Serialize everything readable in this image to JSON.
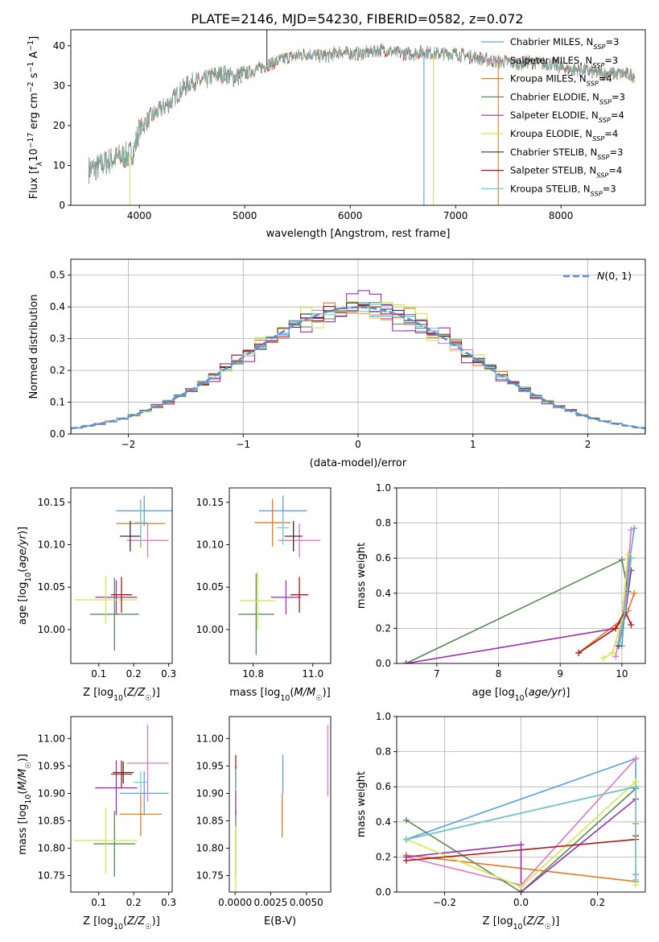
{
  "title": "PLATE=2146, MJD=54230, FIBERID=0582, z=0.072",
  "model_names": [
    "Chabrier MILES, N_SSP=3",
    "Salpeter MILES, N_SSP=3",
    "Kroupa MILES, N_SSP=4",
    "Chabrier ELODIE, N_SSP=3",
    "Salpeter ELODIE, N_SSP=4",
    "Kroupa ELODIE, N_SSP=4",
    "Chabrier STELIB, N_SSP=3",
    "Salpeter STELIB, N_SSP=4",
    "Kroupa STELIB, N_SSP=3"
  ],
  "colors": [
    "#5a9ee6",
    "#e377c2",
    "#e07b20",
    "#5a8a5a",
    "#9b2fae",
    "#d4e84c",
    "#333333",
    "#b01818",
    "#6fd0d0"
  ],
  "chart_data": [
    {
      "id": "spectrum",
      "type": "line",
      "title": "PLATE=2146, MJD=54230, FIBERID=0582, z=0.072",
      "xlabel": "wavelength [Angstrom, rest frame]",
      "ylabel": "Flux [f_λ 10^-17 erg cm^-2 s^-1 A^-1]",
      "xlim": [
        3350,
        8800
      ],
      "ylim": [
        0,
        44
      ],
      "xticks": [
        4000,
        5000,
        6000,
        7000,
        8000
      ],
      "yticks": [
        0,
        10,
        20,
        30,
        40
      ],
      "legend_position": "right",
      "grid": false,
      "continuum": {
        "x": [
          3520,
          3600,
          3700,
          3800,
          3900,
          3950,
          4000,
          4100,
          4200,
          4300,
          4400,
          4500,
          4600,
          4700,
          4800,
          4900,
          5000,
          5100,
          5200,
          5300,
          5400,
          5500,
          5600,
          5700,
          5800,
          5900,
          6000,
          6100,
          6200,
          6300,
          6400,
          6500,
          6600,
          6700,
          6800,
          6900,
          7000,
          7100,
          7200,
          7300,
          7400,
          7500,
          7600,
          7700,
          7800,
          7900,
          8000,
          8100,
          8200,
          8300,
          8400,
          8500,
          8600,
          8700
        ],
        "y": [
          9,
          9.5,
          11,
          12,
          12.5,
          14,
          19,
          22,
          24,
          26,
          29,
          31,
          31,
          32.5,
          33,
          32,
          33,
          34,
          35,
          36,
          37,
          37.5,
          38,
          37.5,
          37.5,
          38.5,
          38,
          38,
          38.5,
          39,
          38.5,
          38,
          38,
          38.5,
          38,
          38,
          38,
          37.5,
          37,
          36.5,
          36,
          36,
          35.5,
          36,
          35.5,
          35.5,
          34.5,
          34,
          34,
          33.5,
          33,
          33,
          33,
          32.5
        ]
      },
      "spikes": [
        {
          "series": 5,
          "x": 3910,
          "y": 0
        },
        {
          "series": 5,
          "x": 6790,
          "y": 0
        },
        {
          "series": 2,
          "x": 7405,
          "y": 0
        },
        {
          "series": 6,
          "x": 5210,
          "y": 44
        },
        {
          "series": 0,
          "x": 6700,
          "y": 0
        }
      ]
    },
    {
      "id": "residual-histogram",
      "type": "bar",
      "xlabel": "(data-model)/error",
      "ylabel": "Normed distribution",
      "xlim": [
        -2.5,
        2.5
      ],
      "ylim": [
        0,
        0.55
      ],
      "xticks": [
        -2,
        -1,
        0,
        1,
        2
      ],
      "yticks": [
        0.0,
        0.1,
        0.2,
        0.3,
        0.4,
        0.5
      ],
      "bin_width": 0.1,
      "bin_start": -2.5,
      "grid": true,
      "reference_curve": {
        "name": "N(0,1)",
        "type": "gaussian",
        "mu": 0,
        "sigma": 1
      },
      "legend_position": "top-right"
    },
    {
      "id": "age-vs-Z",
      "type": "scatter",
      "xlabel": "Z [log10(Z/Z☉)]",
      "ylabel": "age  [log10(age/yr)]",
      "xlim": [
        0.02,
        0.31
      ],
      "ylim": [
        9.96,
        10.167
      ],
      "xticks": [
        0.1,
        0.2,
        0.3
      ],
      "yticks": [
        10.0,
        10.05,
        10.1,
        10.15
      ],
      "points": [
        {
          "x": 0.23,
          "y": 10.14,
          "xerr": 0.08,
          "yerr": 0.018
        },
        {
          "x": 0.24,
          "y": 10.105,
          "xerr": 0.06,
          "yerr": 0.02
        },
        {
          "x": 0.22,
          "y": 10.125,
          "xerr": 0.07,
          "yerr": 0.028
        },
        {
          "x": 0.145,
          "y": 10.018,
          "xerr": 0.07,
          "yerr": 0.043
        },
        {
          "x": 0.15,
          "y": 10.038,
          "xerr": 0.06,
          "yerr": 0.02
        },
        {
          "x": 0.12,
          "y": 10.035,
          "xerr": 0.09,
          "yerr": 0.028
        },
        {
          "x": 0.19,
          "y": 10.11,
          "xerr": 0.03,
          "yerr": 0.018
        },
        {
          "x": 0.165,
          "y": 10.041,
          "xerr": 0.03,
          "yerr": 0.021
        },
        {
          "x": 0.22,
          "y": 10.126,
          "xerr": 0.02,
          "yerr": 0.025
        }
      ]
    },
    {
      "id": "age-vs-mass",
      "type": "scatter",
      "xlabel": "mass [log10(M/M☉)]",
      "ylabel": "",
      "xlim": [
        10.72,
        11.06
      ],
      "ylim": [
        9.96,
        10.167
      ],
      "xticks": [
        10.8,
        11.0
      ],
      "yticks": [
        10.0,
        10.05,
        10.1,
        10.15
      ],
      "points": [
        {
          "x": 10.9,
          "y": 10.14,
          "xerr": 0.08,
          "yerr": 0.018
        },
        {
          "x": 10.955,
          "y": 10.105,
          "xerr": 0.07,
          "yerr": 0.02
        },
        {
          "x": 10.865,
          "y": 10.126,
          "xerr": 0.06,
          "yerr": 0.028
        },
        {
          "x": 10.81,
          "y": 10.018,
          "xerr": 0.06,
          "yerr": 0.048
        },
        {
          "x": 10.91,
          "y": 10.038,
          "xerr": 0.05,
          "yerr": 0.02
        },
        {
          "x": 10.815,
          "y": 10.034,
          "xerr": 0.06,
          "yerr": 0.034
        },
        {
          "x": 10.935,
          "y": 10.11,
          "xerr": 0.03,
          "yerr": 0.018
        },
        {
          "x": 10.955,
          "y": 10.041,
          "xerr": 0.03,
          "yerr": 0.021
        },
        {
          "x": 10.9,
          "y": 10.12,
          "xerr": 0.02,
          "yerr": 0.02
        }
      ]
    },
    {
      "id": "mass-weight-vs-age",
      "type": "line",
      "xlabel": "age  [log10(age/yr)]",
      "ylabel": "mass weight",
      "xlim": [
        6.35,
        10.38
      ],
      "ylim": [
        0,
        1
      ],
      "xticks": [
        7,
        8,
        9,
        10
      ],
      "yticks": [
        0.0,
        0.2,
        0.4,
        0.6,
        0.8,
        1.0
      ],
      "grid": true,
      "series": [
        {
          "x": [
            10.0,
            10.1,
            10.2
          ],
          "y": [
            0.1,
            0.52,
            0.77
          ]
        },
        {
          "x": [
            9.9,
            10.05,
            10.15
          ],
          "y": [
            0.04,
            0.35,
            0.76
          ]
        },
        {
          "x": [
            9.3,
            10.0,
            10.1,
            10.2
          ],
          "y": [
            0.06,
            0.25,
            0.3,
            0.4
          ]
        },
        {
          "x": [
            6.5,
            10.0,
            10.1
          ],
          "y": [
            0.0,
            0.59,
            0.41
          ]
        },
        {
          "x": [
            6.5,
            9.9,
            10.05,
            10.15
          ],
          "y": [
            0.0,
            0.2,
            0.27,
            0.53
          ]
        },
        {
          "x": [
            9.7,
            9.85,
            10.0,
            10.1
          ],
          "y": [
            0.03,
            0.06,
            0.25,
            0.62
          ]
        },
        {
          "x": [
            9.95,
            10.05,
            10.15
          ],
          "y": [
            0.1,
            0.3,
            0.6
          ]
        },
        {
          "x": [
            9.3,
            9.9,
            10.05,
            10.15
          ],
          "y": [
            0.06,
            0.2,
            0.3,
            0.22
          ]
        },
        {
          "x": [
            9.95,
            10.05,
            10.15
          ],
          "y": [
            0.12,
            0.3,
            0.6
          ]
        }
      ]
    },
    {
      "id": "mass-vs-Z",
      "type": "scatter",
      "xlabel": "Z [log10(Z/Z☉)]",
      "ylabel": "mass [log10(M/M☉)]",
      "xlim": [
        0.02,
        0.31
      ],
      "ylim": [
        10.72,
        11.04
      ],
      "xticks": [
        0.1,
        0.2,
        0.3
      ],
      "yticks": [
        10.75,
        10.8,
        10.85,
        10.9,
        10.95,
        11.0
      ],
      "points": [
        {
          "x": 0.23,
          "y": 10.9,
          "xerr": 0.07,
          "yerr": 0.04
        },
        {
          "x": 0.24,
          "y": 10.955,
          "xerr": 0.06,
          "yerr": 0.07
        },
        {
          "x": 0.22,
          "y": 10.862,
          "xerr": 0.06,
          "yerr": 0.04
        },
        {
          "x": 0.145,
          "y": 10.808,
          "xerr": 0.06,
          "yerr": 0.06
        },
        {
          "x": 0.15,
          "y": 10.91,
          "xerr": 0.06,
          "yerr": 0.05
        },
        {
          "x": 0.12,
          "y": 10.814,
          "xerr": 0.09,
          "yerr": 0.06
        },
        {
          "x": 0.17,
          "y": 10.938,
          "xerr": 0.03,
          "yerr": 0.02
        },
        {
          "x": 0.165,
          "y": 10.935,
          "xerr": 0.03,
          "yerr": 0.025
        },
        {
          "x": 0.22,
          "y": 10.92,
          "xerr": 0.02,
          "yerr": 0.02
        }
      ]
    },
    {
      "id": "mass-vs-EBV",
      "type": "scatter",
      "xlabel": "E(B-V)",
      "ylabel": "",
      "xlim": [
        -0.0004,
        0.0067
      ],
      "ylim": [
        10.72,
        11.04
      ],
      "xticks": [
        0.0,
        0.0025,
        0.005
      ],
      "xticklabels": [
        "0.0000",
        "0.0025",
        "0.0050"
      ],
      "yticks": [
        10.75,
        10.8,
        10.85,
        10.9,
        10.95,
        11.0
      ],
      "points": [
        {
          "x": 0.00335,
          "y": 10.935,
          "xerr": 0,
          "yerr": 0.035
        },
        {
          "x": 0.0065,
          "y": 10.96,
          "xerr": 0,
          "yerr": 0.065
        },
        {
          "x": 0.0033,
          "y": 10.86,
          "xerr": 0,
          "yerr": 0.04
        },
        {
          "x": 5e-05,
          "y": 10.808,
          "xerr": 0,
          "yerr": 0.06
        },
        {
          "x": 5e-05,
          "y": 10.89,
          "xerr": 0,
          "yerr": 0.03
        },
        {
          "x": 5e-05,
          "y": 10.78,
          "xerr": 0,
          "yerr": 0.06
        },
        {
          "x": 5e-05,
          "y": 10.93,
          "xerr": 0,
          "yerr": 0.02
        },
        {
          "x": 5e-05,
          "y": 10.945,
          "xerr": 0,
          "yerr": 0.025
        },
        {
          "x": 5e-05,
          "y": 10.925,
          "xerr": 0,
          "yerr": 0.02
        }
      ]
    },
    {
      "id": "mass-weight-vs-Z",
      "type": "line",
      "xlabel": "Z [log10(Z/Z☉)]",
      "ylabel": "mass weight",
      "xlim": [
        -0.325,
        0.325
      ],
      "ylim": [
        0,
        1
      ],
      "xticks": [
        -0.2,
        0.0,
        0.2
      ],
      "yticks": [
        0.0,
        0.2,
        0.4,
        0.6,
        0.8,
        1.0
      ],
      "grid": true,
      "series": [
        {
          "x": [
            -0.3,
            0.3,
            0.3
          ],
          "y": [
            0.3,
            0.76,
            0.1
          ]
        },
        {
          "x": [
            -0.3,
            0.0,
            0.3
          ],
          "y": [
            0.2,
            0.04,
            0.76
          ]
        },
        {
          "x": [
            -0.3,
            0.3,
            0.3
          ],
          "y": [
            0.21,
            0.06,
            0.39
          ]
        },
        {
          "x": [
            -0.3,
            0.0,
            0.3
          ],
          "y": [
            0.41,
            0.0,
            0.59
          ]
        },
        {
          "x": [
            -0.3,
            0.0,
            0.0,
            0.3
          ],
          "y": [
            0.2,
            0.27,
            0.0,
            0.53
          ]
        },
        {
          "x": [
            -0.3,
            0.0,
            0.3,
            0.3
          ],
          "y": [
            0.3,
            0.03,
            0.63,
            0.04
          ]
        },
        {
          "x": [
            -0.3,
            0.3
          ],
          "y": [
            0.3,
            0.6
          ]
        },
        {
          "x": [
            -0.3,
            0.3,
            0.3
          ],
          "y": [
            0.18,
            0.3,
            0.32
          ]
        },
        {
          "x": [
            -0.3,
            0.3,
            0.3
          ],
          "y": [
            0.3,
            0.6,
            0.07
          ]
        }
      ]
    }
  ]
}
